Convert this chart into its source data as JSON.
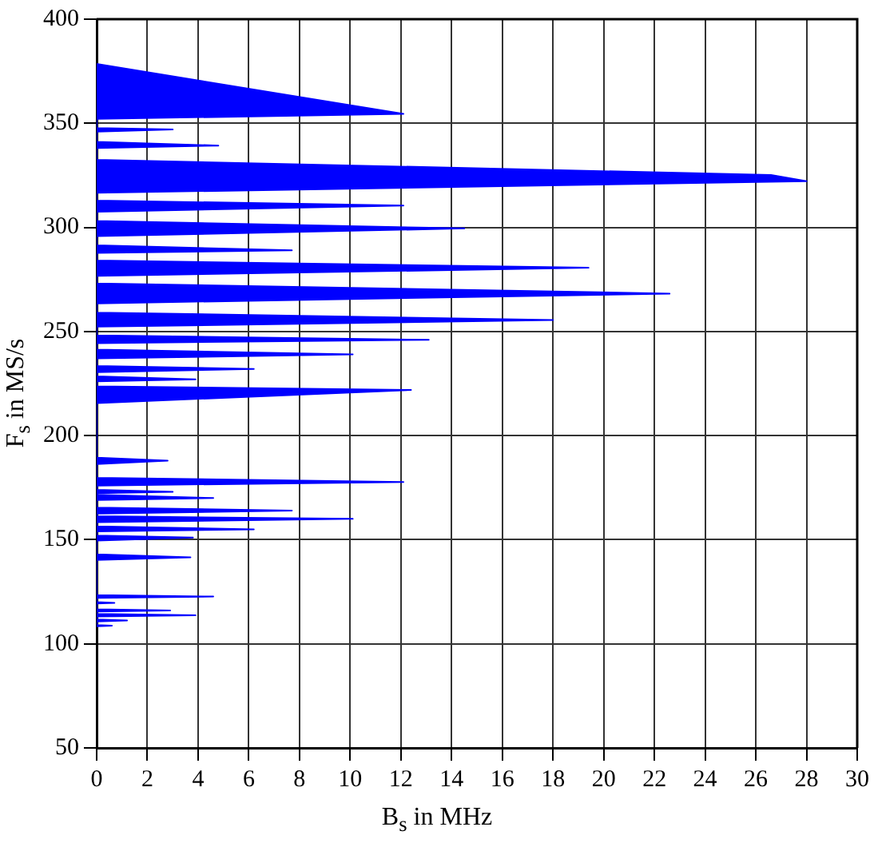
{
  "chart_data": {
    "type": "area",
    "orientation": "horizontal",
    "xlabel": "B$_{s}$ in MHz",
    "ylabel": "F$_{s}$ in MS/s",
    "xlim": [
      0,
      30
    ],
    "xticks": [
      0,
      2,
      4,
      6,
      8,
      10,
      12,
      14,
      16,
      18,
      20,
      22,
      24,
      26,
      28,
      30
    ],
    "ylim": [
      50,
      400
    ],
    "yticks": [
      50,
      100,
      150,
      200,
      250,
      300,
      350,
      400
    ],
    "grid": true,
    "series": [
      {
        "color": "#0000ff",
        "x": [
          108.4,
          108.7,
          109,
          110.7,
          111.2,
          111.7,
          113.1,
          113.7,
          114.4,
          115.5,
          116,
          116.6,
          119.4,
          119.7,
          120,
          122.1,
          122.7,
          123.4,
          140.3,
          141.5,
          143,
          149.6,
          151,
          152,
          154,
          155,
          156.4,
          158.4,
          160,
          161.3,
          162.5,
          164,
          165.4,
          169.1,
          170,
          171.6,
          172.3,
          173,
          174,
          176,
          177.7,
          179.7,
          186.3,
          188,
          189.4,
          215.6,
          221.9,
          223.7,
          226.1,
          227,
          228.5,
          230.5,
          232,
          233.4,
          237.1,
          239,
          241.3,
          244.4,
          246,
          248.1,
          252.3,
          255.5,
          259.1,
          263.5,
          268.2,
          273.1,
          276.7,
          280.6,
          284.1,
          287.7,
          289,
          291.4,
          295.8,
          299.5,
          303.1,
          307.5,
          310.5,
          312.9,
          316.6,
          322.2,
          325.2,
          332.5,
          338.1,
          339.3,
          341.1,
          346,
          347,
          347.7,
          352.1,
          354.5,
          378.5
        ],
        "values": [
          0,
          0.6,
          0,
          0,
          1.2,
          0,
          0,
          3.9,
          0,
          0,
          2.9,
          0,
          0,
          0.7,
          0,
          0,
          4.6,
          0,
          0,
          3.7,
          0,
          0,
          3.8,
          0,
          0,
          6.2,
          0,
          0,
          10.1,
          0,
          0,
          7.7,
          0,
          0,
          4.6,
          0,
          0,
          3.0,
          0,
          0,
          12.1,
          0,
          0,
          2.8,
          0,
          0,
          12.4,
          0,
          0,
          3.9,
          0,
          0,
          6.2,
          0,
          0,
          10.1,
          0,
          0,
          13.1,
          0,
          0,
          18.0,
          0,
          0,
          22.6,
          0,
          0,
          19.4,
          0,
          0,
          7.7,
          0,
          0,
          14.5,
          0,
          0,
          12.1,
          0,
          0,
          28.0,
          26.6,
          0,
          0,
          4.8,
          0,
          0,
          3.0,
          0,
          0,
          12.1,
          0
        ]
      }
    ]
  }
}
